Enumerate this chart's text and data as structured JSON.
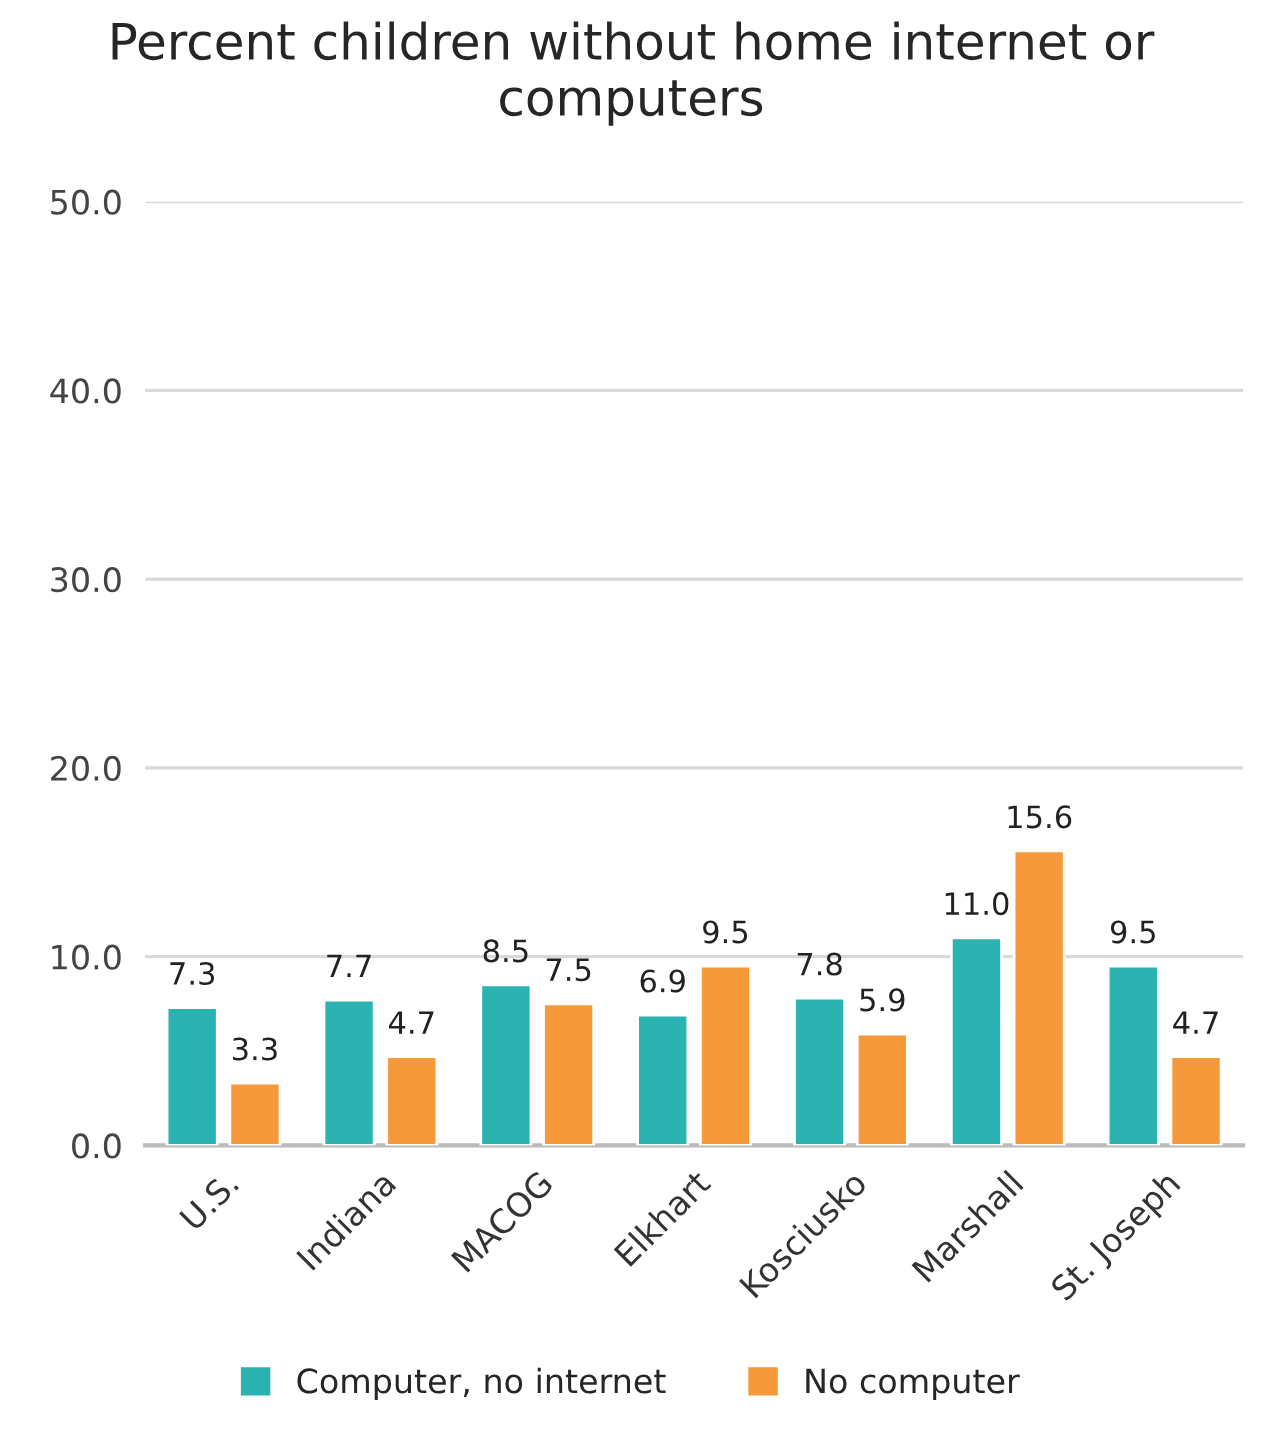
{
  "chart_data": {
    "type": "bar",
    "title": "Percent children without home internet or computers",
    "categories": [
      "U.S.",
      "Indiana",
      "MACOG",
      "Elkhart",
      "Kosciusko",
      "Marshall",
      "St. Joseph"
    ],
    "series": [
      {
        "name": "Computer, no internet",
        "color": "#2bb3b1",
        "values": [
          7.3,
          7.7,
          8.5,
          6.9,
          7.8,
          11.0,
          9.5
        ]
      },
      {
        "name": "No computer",
        "color": "#f5993a",
        "values": [
          3.3,
          4.7,
          7.5,
          9.5,
          5.9,
          15.6,
          4.7
        ]
      }
    ],
    "value_labels": [
      [
        "7.3",
        "7.7",
        "8.5",
        "6.9",
        "7.8",
        "11.0",
        "9.5"
      ],
      [
        "3.3",
        "4.7",
        "7.5",
        "9.5",
        "5.9",
        "15.6",
        "4.7"
      ]
    ],
    "ylim": [
      0,
      50
    ],
    "yticks": [
      {
        "value": 0,
        "label": "0.0"
      },
      {
        "value": 10,
        "label": "10.0"
      },
      {
        "value": 20,
        "label": "20.0"
      },
      {
        "value": 30,
        "label": "30.0"
      },
      {
        "value": 40,
        "label": "40.0"
      },
      {
        "value": 50,
        "label": "50.0"
      }
    ],
    "grid": "y",
    "legend": "bottom"
  }
}
